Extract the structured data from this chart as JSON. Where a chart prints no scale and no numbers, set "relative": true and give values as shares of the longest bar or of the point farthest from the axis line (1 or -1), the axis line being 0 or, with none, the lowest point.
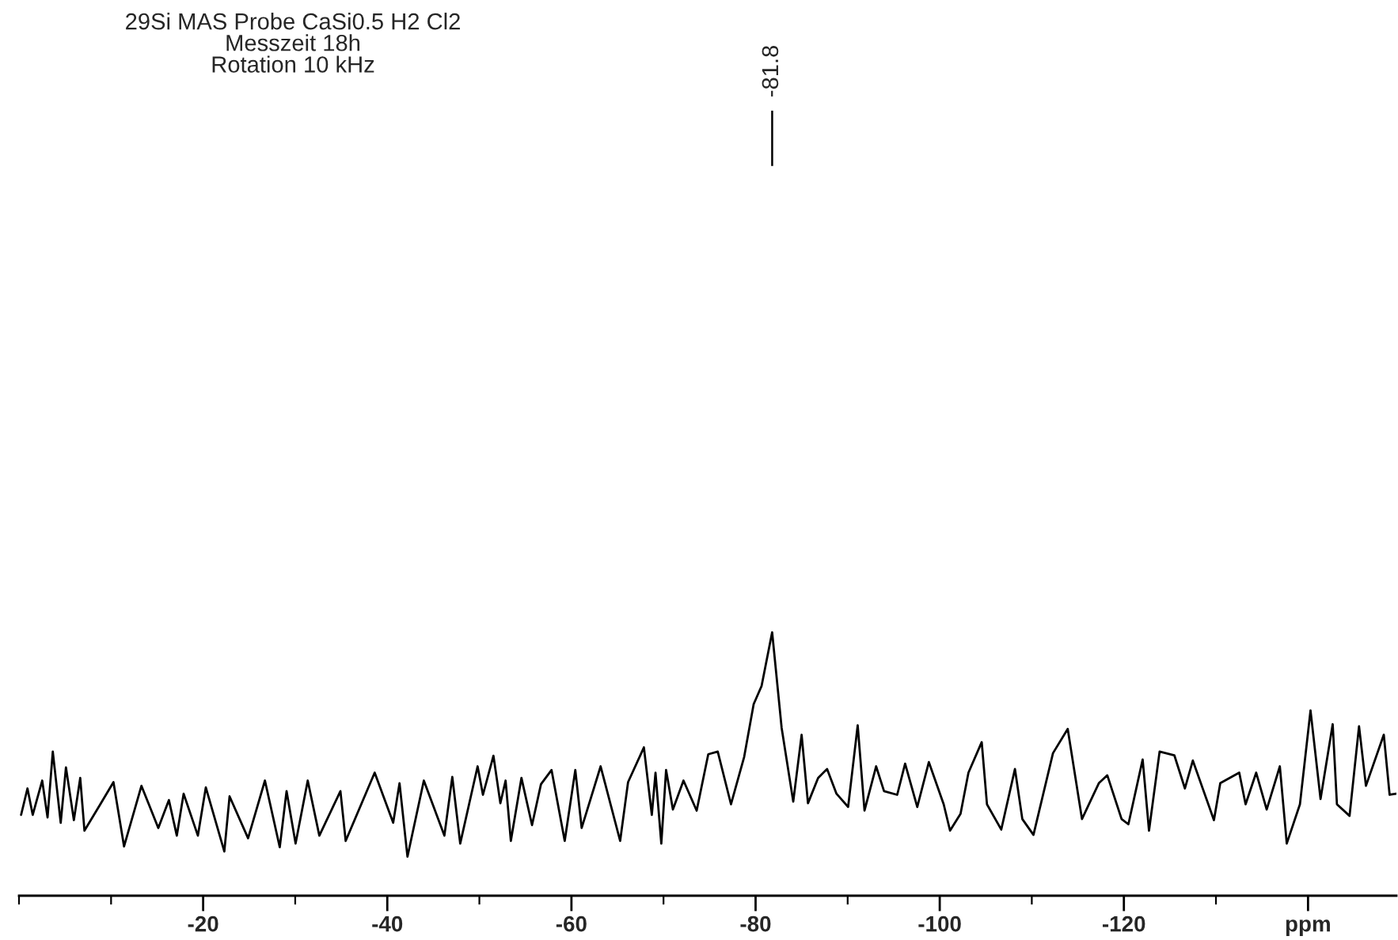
{
  "chart_data": {
    "type": "line",
    "title": "29Si MAS Probe CaSi0.5 H2 Cl2\nMesszeit 18h\nRotation 10 kHz",
    "relative": true,
    "x": [
      -0.23,
      -0.92,
      -1.49,
      -2.52,
      -3.1,
      -3.67,
      -4.53,
      -5.1,
      -5.96,
      -6.65,
      -7.11,
      -8.83,
      -10.26,
      -11.41,
      -13.3,
      -15.13,
      -16.28,
      -17.14,
      -17.88,
      -19.43,
      -20.29,
      -22.3,
      -22.87,
      -24.88,
      -26.71,
      -28.32,
      -29.06,
      -30.04,
      -31.36,
      -32.62,
      -34.91,
      -35.48,
      -38.63,
      -40.64,
      -41.33,
      -42.19,
      -43.97,
      -46.2,
      -47.06,
      -47.92,
      -49.81,
      -50.39,
      -51.53,
      -52.28,
      -52.85,
      -53.42,
      -54.57,
      -55.72,
      -56.69,
      -57.84,
      -59.27,
      -60.42,
      -61.11,
      -63.17,
      -65.29,
      -66.15,
      -67.87,
      -68.73,
      -69.13,
      -69.76,
      -70.28,
      -71.02,
      -72.17,
      -73.6,
      -74.86,
      -75.89,
      -77.33,
      -78.76,
      -79.79,
      -80.65,
      -81.8,
      -82.83,
      -84.09,
      -85.0,
      -85.69,
      -86.79,
      -87.76,
      -88.79,
      -90.05,
      -91.09,
      -91.83,
      -93.09,
      -93.95,
      -95.38,
      -96.24,
      -97.56,
      -98.82,
      -100.43,
      -101.12,
      -102.26,
      -103.12,
      -104.56,
      -105.13,
      -106.68,
      -108.17,
      -108.97,
      -110.18,
      -112.3,
      -113.9,
      -115.45,
      -117.28,
      -118.2,
      -119.75,
      -120.49,
      -122.04,
      -122.73,
      -123.88,
      -125.48,
      -126.63,
      -127.49,
      -129.78,
      -130.47,
      -132.53,
      -133.22,
      -134.37,
      -135.51,
      -136.94,
      -137.69,
      -139.12,
      -140.27,
      -141.36,
      -142.68,
      -143.14,
      -144.51,
      -145.54,
      -146.29,
      -148.23,
      -148.86,
      -149.55
    ],
    "series": [
      {
        "color": "#000000",
        "values": [
          0.307,
          0.407,
          0.307,
          0.437,
          0.297,
          0.547,
          0.277,
          0.487,
          0.287,
          0.447,
          0.247,
          0.347,
          0.431,
          0.187,
          0.417,
          0.257,
          0.363,
          0.228,
          0.387,
          0.228,
          0.411,
          0.168,
          0.377,
          0.218,
          0.437,
          0.184,
          0.397,
          0.198,
          0.437,
          0.228,
          0.397,
          0.208,
          0.467,
          0.277,
          0.427,
          0.148,
          0.437,
          0.228,
          0.451,
          0.198,
          0.491,
          0.383,
          0.531,
          0.351,
          0.437,
          0.208,
          0.447,
          0.268,
          0.423,
          0.477,
          0.208,
          0.477,
          0.257,
          0.491,
          0.208,
          0.431,
          0.563,
          0.307,
          0.467,
          0.198,
          0.477,
          0.327,
          0.437,
          0.323,
          0.537,
          0.547,
          0.347,
          0.527,
          0.727,
          0.796,
          1.0,
          0.637,
          0.357,
          0.611,
          0.351,
          0.447,
          0.481,
          0.387,
          0.337,
          0.647,
          0.323,
          0.491,
          0.397,
          0.383,
          0.501,
          0.337,
          0.507,
          0.347,
          0.247,
          0.311,
          0.467,
          0.583,
          0.347,
          0.251,
          0.481,
          0.291,
          0.231,
          0.541,
          0.633,
          0.291,
          0.427,
          0.457,
          0.291,
          0.271,
          0.517,
          0.247,
          0.547,
          0.533,
          0.407,
          0.513,
          0.287,
          0.427,
          0.467,
          0.347,
          0.467,
          0.327,
          0.491,
          0.198,
          0.347,
          0.703,
          0.367,
          0.651,
          0.347,
          0.303,
          0.643,
          0.417,
          0.611,
          0.383,
          0.387
        ]
      }
    ],
    "xlim": [
      0,
      -149.6
    ],
    "xticks": [
      {
        "value": 0,
        "label": null
      },
      {
        "value": -10,
        "label": null
      },
      -20,
      {
        "value": -30,
        "label": null
      },
      -40,
      {
        "value": -50,
        "label": null
      },
      -60,
      {
        "value": -70,
        "label": null
      },
      -80,
      {
        "value": -90,
        "label": null
      },
      -100,
      {
        "value": -110,
        "label": null
      },
      -120,
      {
        "value": -130,
        "label": null
      },
      {
        "value": -140,
        "label": "ppm"
      }
    ],
    "annotations": [
      "-81.8"
    ],
    "tick_labels": "x",
    "grid": false,
    "legend": false,
    "marker": "none",
    "line_style": "solid"
  }
}
